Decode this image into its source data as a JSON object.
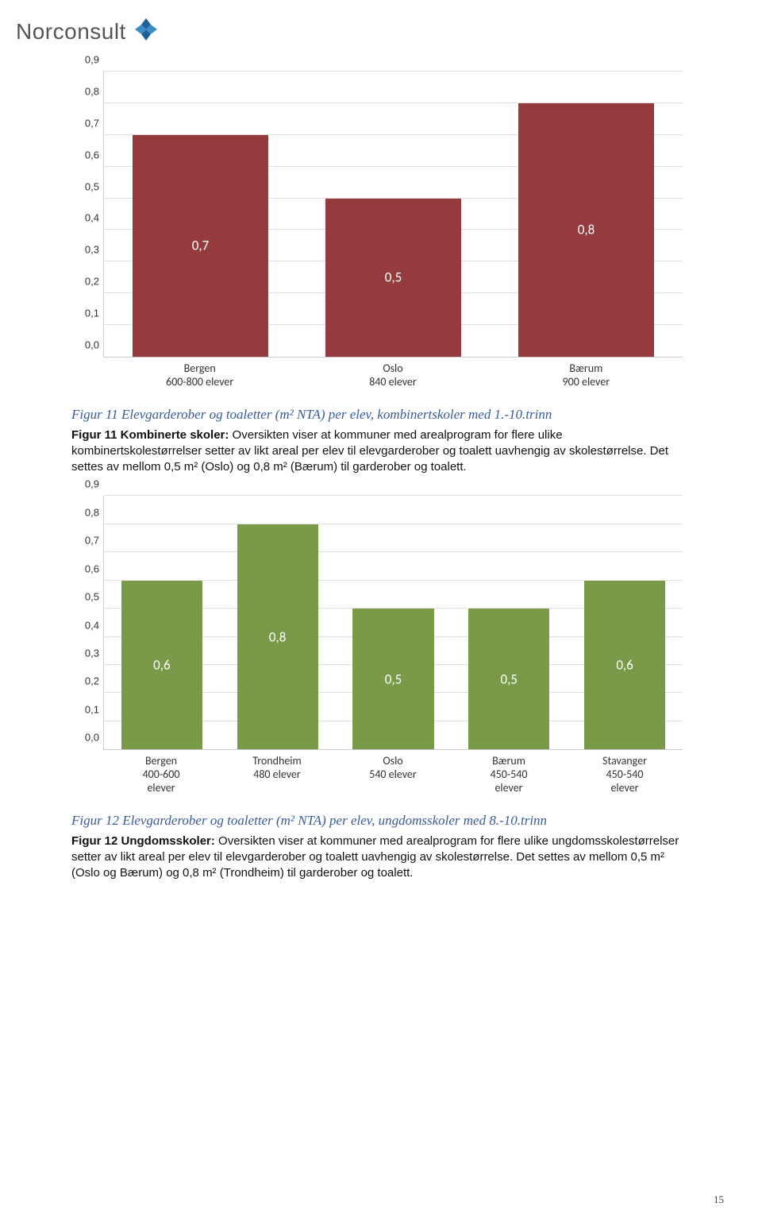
{
  "logo_text": "Norconsult",
  "page_number": "15",
  "chart1": {
    "type": "bar",
    "ylim": [
      0.0,
      0.9
    ],
    "ytick_step": 0.1,
    "yticks": [
      "0,0",
      "0,1",
      "0,2",
      "0,3",
      "0,4",
      "0,5",
      "0,6",
      "0,7",
      "0,8",
      "0,9"
    ],
    "categories_line1": [
      "Bergen",
      "Oslo",
      "Bærum"
    ],
    "categories_line2": [
      "600-800 elever",
      "840 elever",
      "900 elever"
    ],
    "values": [
      0.7,
      0.5,
      0.8
    ],
    "value_labels": [
      "0,7",
      "0,5",
      "0,8"
    ],
    "bar_color": "#963b3d",
    "grid_color": "#e0e0e0",
    "background_color": "#ffffff"
  },
  "caption1": "Figur 11 Elevgarderober og toaletter (m² NTA) per elev, kombinertskoler med 1.-10.trinn",
  "text1_bold": "Figur 11 Kombinerte skoler:",
  "text1_rest": " Oversikten viser at kommuner med arealprogram for flere ulike kombinertskolestørrelser setter av likt areal per elev til elevgarderober og toalett uavhengig av skolestørrelse. Det settes av mellom 0,5 m² (Oslo) og 0,8 m² (Bærum) til garderober og toalett.",
  "chart2": {
    "type": "bar",
    "ylim": [
      0.0,
      0.9
    ],
    "ytick_step": 0.1,
    "yticks": [
      "0,0",
      "0,1",
      "0,2",
      "0,3",
      "0,4",
      "0,5",
      "0,6",
      "0,7",
      "0,8",
      "0,9"
    ],
    "categories_line1": [
      "Bergen",
      "Trondheim",
      "Oslo",
      "Bærum",
      "Stavanger"
    ],
    "categories_line2": [
      "400-600",
      "480 elever",
      "540 elever",
      "450-540",
      "450-540"
    ],
    "categories_line3": [
      "elever",
      "",
      "",
      "elever",
      "elever"
    ],
    "values": [
      0.6,
      0.8,
      0.5,
      0.5,
      0.6
    ],
    "value_labels": [
      "0,6",
      "0,8",
      "0,5",
      "0,5",
      "0,6"
    ],
    "bar_color": "#7a9a4a",
    "grid_color": "#e0e0e0",
    "background_color": "#ffffff"
  },
  "caption2": "Figur 12 Elevgarderober og toaletter (m² NTA) per elev, ungdomsskoler med 8.-10.trinn",
  "text2_bold": "Figur 12 Ungdomsskoler:",
  "text2_rest": " Oversikten viser at kommuner med arealprogram for flere ulike ungdomsskolestørrelser setter av likt areal per elev til elevgarderober og toalett uavhengig av skolestørrelse. Det settes av mellom 0,5 m² (Oslo og Bærum) og 0,8 m² (Trondheim) til garderober og toalett."
}
